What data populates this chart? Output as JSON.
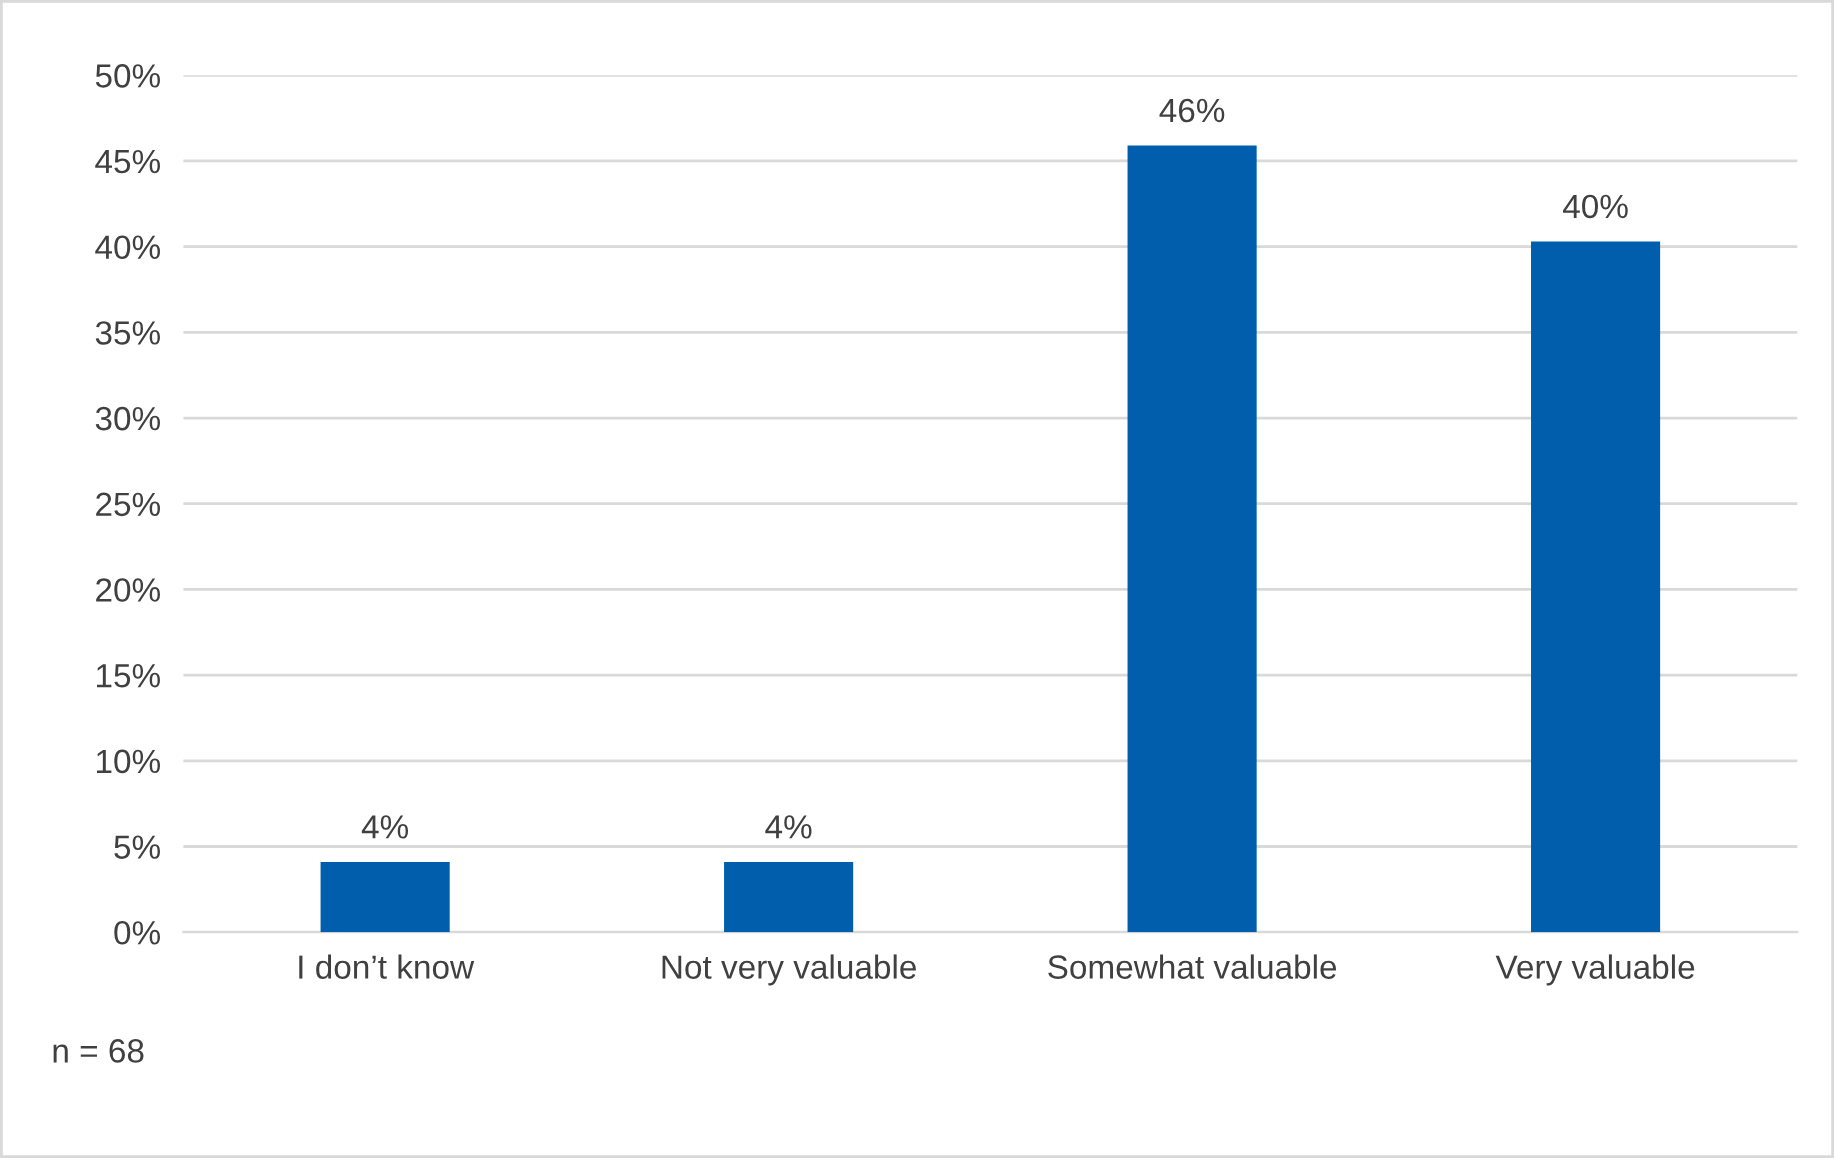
{
  "chart_data": {
    "type": "bar",
    "categories": [
      "I don’t know",
      "Not very valuable",
      "Somewhat valuable",
      "Very valuable"
    ],
    "values": [
      4.1,
      4.1,
      45.9,
      40.3
    ],
    "value_labels": [
      "4%",
      "4%",
      "46%",
      "40%"
    ],
    "color": "#005eac",
    "ylim": [
      0,
      50
    ],
    "yticks": [
      {
        "value": 0,
        "label": "0%"
      },
      {
        "value": 5,
        "label": "5%"
      },
      {
        "value": 10,
        "label": "10%"
      },
      {
        "value": 15,
        "label": "15%"
      },
      {
        "value": 20,
        "label": "20%"
      },
      {
        "value": 25,
        "label": "25%"
      },
      {
        "value": 30,
        "label": "30%"
      },
      {
        "value": 35,
        "label": "35%"
      },
      {
        "value": 40,
        "label": "40%"
      },
      {
        "value": 45,
        "label": "45%"
      },
      {
        "value": 50,
        "label": "50%"
      }
    ],
    "grid": "y",
    "annotations": [
      "n = 68"
    ]
  }
}
